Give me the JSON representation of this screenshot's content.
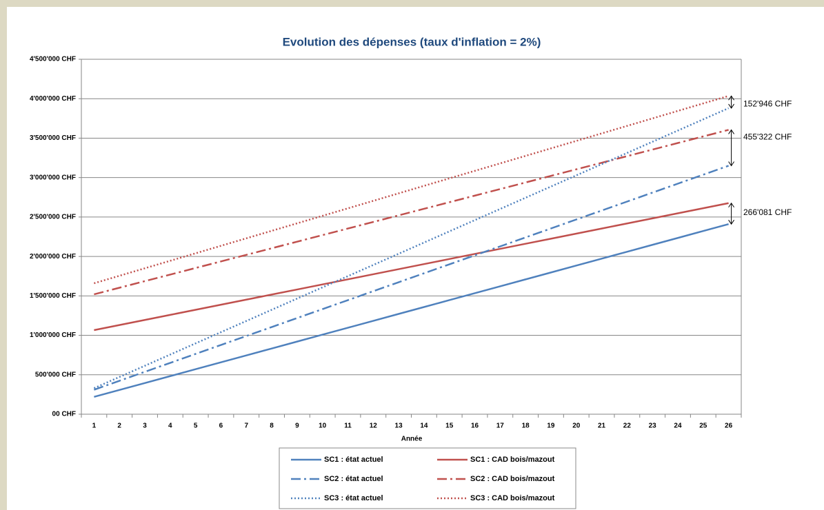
{
  "chart_data": {
    "type": "line",
    "title": "Evolution des dépenses (taux d'inflation = 2%)",
    "x_label": "Année",
    "categories": [
      1,
      2,
      3,
      4,
      5,
      6,
      7,
      8,
      9,
      10,
      11,
      12,
      13,
      14,
      15,
      16,
      17,
      18,
      19,
      20,
      21,
      22,
      23,
      24,
      25,
      26
    ],
    "ylim": [
      0,
      4500000
    ],
    "yticks": [
      {
        "value": 0,
        "label": "00 CHF"
      },
      {
        "value": 500000,
        "label": "500'000 CHF"
      },
      {
        "value": 1000000,
        "label": "1'000'000 CHF"
      },
      {
        "value": 1500000,
        "label": "1'500'000 CHF"
      },
      {
        "value": 2000000,
        "label": "2'000'000 CHF"
      },
      {
        "value": 2500000,
        "label": "2'500'000 CHF"
      },
      {
        "value": 3000000,
        "label": "3'000'000 CHF"
      },
      {
        "value": 3500000,
        "label": "3'500'000 CHF"
      },
      {
        "value": 4000000,
        "label": "4'000'000 CHF"
      },
      {
        "value": 4500000,
        "label": "4'500'000 CHF"
      }
    ],
    "grid": true,
    "legend": "bottom",
    "series": [
      {
        "name": "SC1 : état actuel",
        "color": "#4f81bd",
        "dash": "solid",
        "values": [
          220000,
          307600,
          395200,
          482800,
          570400,
          658000,
          745600,
          833200,
          920800,
          1008400,
          1096000,
          1183600,
          1271200,
          1358800,
          1446400,
          1534000,
          1621600,
          1709200,
          1796800,
          1884400,
          1972000,
          2059600,
          2147200,
          2234800,
          2322400,
          2410000
        ]
      },
      {
        "name": "SC1 : CAD bois/mazout",
        "color": "#c0504d",
        "dash": "solid",
        "values": [
          1066000,
          1130400,
          1194800,
          1259200,
          1323600,
          1388000,
          1452400,
          1516800,
          1581200,
          1645600,
          1710000,
          1774400,
          1838800,
          1903200,
          1967600,
          2032000,
          2096400,
          2160800,
          2225200,
          2289600,
          2354000,
          2418400,
          2482800,
          2547200,
          2611600,
          2676000
        ]
      },
      {
        "name": "SC2 : état actuel",
        "color": "#4f81bd",
        "dash": "dashdot",
        "values": [
          310000,
          423600,
          537200,
          650800,
          764400,
          878000,
          991600,
          1105200,
          1218800,
          1332400,
          1446000,
          1559600,
          1673200,
          1786800,
          1900400,
          2014000,
          2127600,
          2241200,
          2354800,
          2468400,
          2582000,
          2695600,
          2809200,
          2922800,
          3036400,
          3150000
        ]
      },
      {
        "name": "SC2 : CAD bois/mazout",
        "color": "#c0504d",
        "dash": "dashdot",
        "values": [
          1520000,
          1603400,
          1686800,
          1770200,
          1853600,
          1937000,
          2020400,
          2103800,
          2187200,
          2270600,
          2354000,
          2437400,
          2520800,
          2604200,
          2687600,
          2771000,
          2854400,
          2937800,
          3021200,
          3104600,
          3188000,
          3271400,
          3354800,
          3438200,
          3521600,
          3605000
        ]
      },
      {
        "name": "SC3 : état actuel",
        "color": "#4f81bd",
        "dash": "dot",
        "values": [
          330000,
          472000,
          614000,
          756000,
          898000,
          1040000,
          1182000,
          1324000,
          1466000,
          1608000,
          1750000,
          1892000,
          2034000,
          2176000,
          2318000,
          2460000,
          2602000,
          2744000,
          2886000,
          3028000,
          3170000,
          3312000,
          3454000,
          3596000,
          3738000,
          3880000
        ]
      },
      {
        "name": "SC3 : CAD bois/mazout",
        "color": "#c0504d",
        "dash": "dot",
        "values": [
          1660000,
          1755000,
          1850000,
          1945000,
          2040000,
          2135000,
          2230000,
          2325000,
          2420000,
          2515000,
          2610000,
          2705000,
          2800000,
          2895000,
          2990000,
          3085000,
          3180000,
          3275000,
          3370000,
          3465000,
          3560000,
          3655000,
          3750000,
          3845000,
          3940000,
          4035000
        ]
      }
    ],
    "annotations": [
      "152'946 CHF",
      "455'322 CHF",
      "266'081 CHF"
    ]
  }
}
